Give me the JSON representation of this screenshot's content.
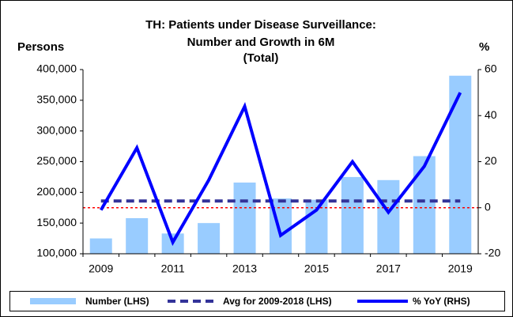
{
  "chart_data": {
    "type": "combo",
    "title": [
      "TH: Patients under Disease Surveillance:",
      "Number and Growth in 6M",
      "(Total)"
    ],
    "ylabel": "Persons",
    "y2label": "%",
    "categories": [
      "2009",
      null,
      "2011",
      null,
      "2013",
      null,
      "2015",
      null,
      "2017",
      null,
      "2019"
    ],
    "series": [
      {
        "name": "Number (LHS)",
        "type": "bar",
        "color": "#99ccff",
        "values": [
          125000,
          158000,
          133000,
          150000,
          216000,
          190000,
          188000,
          225000,
          220000,
          259000,
          390000
        ]
      },
      {
        "name": "Avg for 2009-2018 (LHS)",
        "type": "line",
        "dashed": true,
        "color": "#333399",
        "values": [
          186000,
          186000,
          186000,
          186000,
          186000,
          186000,
          186000,
          186000,
          186000,
          186000,
          186000
        ]
      },
      {
        "name": "% YoY (RHS)",
        "type": "line",
        "axis": "y2",
        "color": "#0000ff",
        "values": [
          -1,
          26,
          -15,
          12,
          44,
          -12,
          -1,
          20,
          -2,
          18,
          50
        ]
      }
    ],
    "ylim": [
      100000,
      400000
    ],
    "yticks": [
      {
        "value": 100000,
        "label": "100,000"
      },
      {
        "value": 150000,
        "label": "150,000"
      },
      {
        "value": 200000,
        "label": "200,000"
      },
      {
        "value": 250000,
        "label": "250,000"
      },
      {
        "value": 300000,
        "label": "300,000"
      },
      {
        "value": 350000,
        "label": "350,000"
      },
      {
        "value": 400000,
        "label": "400,000"
      }
    ],
    "y2lim": [
      -20,
      60
    ],
    "y2ticks": [
      -20,
      0,
      20,
      40,
      60
    ],
    "y2_zero_line_color": "#ff0000",
    "legend": "bottom"
  }
}
